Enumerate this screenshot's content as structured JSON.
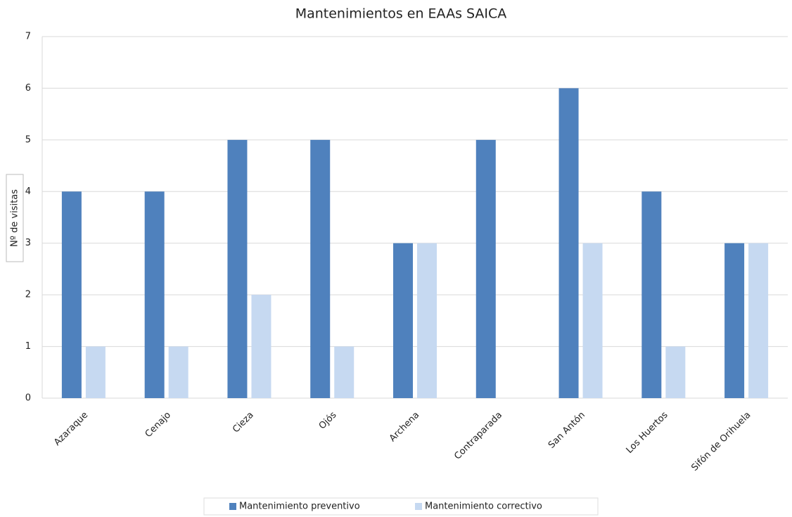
{
  "chart_data": {
    "type": "bar",
    "title": "Mantenimientos en EAAs SAICA",
    "y_label": "Nº de visitas",
    "categories": [
      "Azaraque",
      "Cenajo",
      "Cieza",
      "Ojós",
      "Archena",
      "Contraparada",
      "San Antón",
      "Los Huertos",
      "Sifón de Orihuela"
    ],
    "series": [
      {
        "name": "Mantenimiento preventivo",
        "color": "#4f81bd",
        "values": [
          4,
          4,
          5,
          5,
          3,
          5,
          6,
          4,
          3
        ]
      },
      {
        "name": "Mantenimiento correctivo",
        "color": "#c6d9f1",
        "values": [
          1,
          1,
          2,
          1,
          3,
          0,
          3,
          1,
          3
        ]
      }
    ],
    "ylim": [
      0,
      7
    ],
    "yticks": [
      0,
      1,
      2,
      3,
      4,
      5,
      6,
      7
    ],
    "grid": true,
    "legend": "bottom"
  }
}
